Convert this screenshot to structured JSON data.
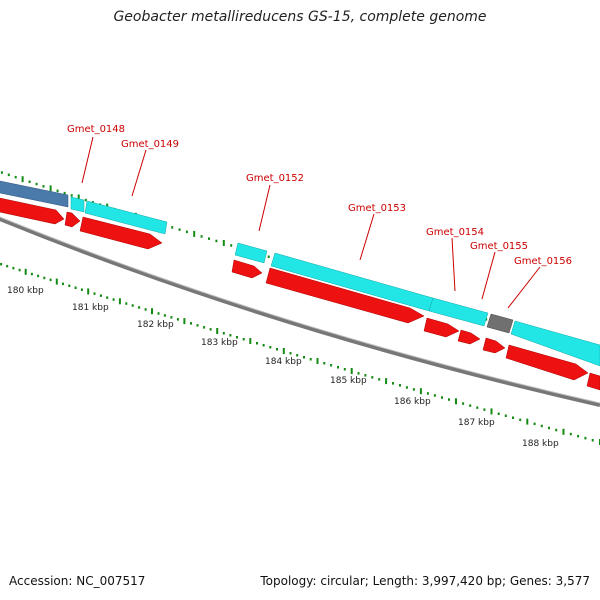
{
  "title": "Geobacter metallireducens GS-15, complete genome",
  "footer": {
    "accession": "Accession: NC_007517",
    "topology": "Topology: circular; Length: 3,997,420 bp; Genes: 3,577"
  },
  "colors": {
    "gene_label": "#cc0000",
    "forward_feature": "#22e6e6",
    "reverse_feature": "#ee1111",
    "blue_feature": "#4a7aaa",
    "gray_feature": "#707070",
    "backbone": "#888888",
    "tick": "#138a13"
  },
  "gene_labels": [
    "Gmet_0148",
    "Gmet_0149",
    "Gmet_0152",
    "Gmet_0153",
    "Gmet_0154",
    "Gmet_0155",
    "Gmet_0156"
  ],
  "kbp_labels": [
    "180 kbp",
    "181 kbp",
    "182 kbp",
    "183 kbp",
    "184 kbp",
    "185 kbp",
    "186 kbp",
    "187 kbp",
    "188 kbp"
  ]
}
